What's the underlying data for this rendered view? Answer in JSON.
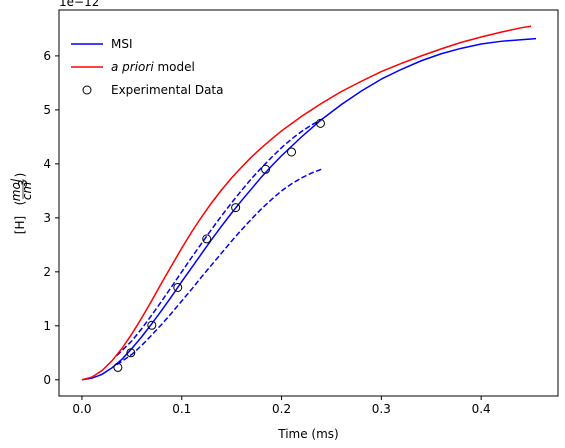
{
  "chart_data": {
    "type": "line",
    "xlabel": "Time (ms)",
    "ylabel": "[H]",
    "ylabel_unit_numerator": "mol",
    "ylabel_unit_denominator": "cm",
    "ylabel_unit_exponent": "3",
    "y_offset_text": "1e−12",
    "xlim": [
      -0.023,
      0.477
    ],
    "ylim": [
      -0.3,
      6.85
    ],
    "x_ticks": [
      0.0,
      0.1,
      0.2,
      0.3,
      0.4
    ],
    "x_tick_labels": [
      "0.0",
      "0.1",
      "0.2",
      "0.3",
      "0.4"
    ],
    "y_ticks": [
      0,
      1,
      2,
      3,
      4,
      5,
      6
    ],
    "y_tick_labels": [
      "0",
      "1",
      "2",
      "3",
      "4",
      "5",
      "6"
    ],
    "grid": false,
    "legend_position": "top-left",
    "legend": [
      {
        "label": "MSI",
        "color": "#0000ff",
        "style": "solid"
      },
      {
        "label_italic": "a priori",
        "label_rest": " model",
        "color": "#ff0000",
        "style": "solid"
      },
      {
        "label": "Experimental Data",
        "color": "#000000",
        "style": "circle"
      }
    ],
    "series": [
      {
        "name": "MSI",
        "color": "#0000ff",
        "style": "solid",
        "x": [
          0.0,
          0.01,
          0.02,
          0.03,
          0.04,
          0.05,
          0.06,
          0.07,
          0.08,
          0.09,
          0.1,
          0.11,
          0.12,
          0.13,
          0.14,
          0.15,
          0.16,
          0.17,
          0.18,
          0.19,
          0.2,
          0.22,
          0.24,
          0.26,
          0.28,
          0.3,
          0.32,
          0.34,
          0.36,
          0.38,
          0.4,
          0.42,
          0.44,
          0.455
        ],
        "y": [
          0.0,
          0.03,
          0.1,
          0.22,
          0.38,
          0.58,
          0.8,
          1.04,
          1.29,
          1.55,
          1.82,
          2.08,
          2.34,
          2.6,
          2.85,
          3.09,
          3.32,
          3.54,
          3.76,
          3.96,
          4.15,
          4.5,
          4.82,
          5.1,
          5.35,
          5.57,
          5.75,
          5.91,
          6.04,
          6.14,
          6.22,
          6.27,
          6.3,
          6.32
        ]
      },
      {
        "name": "",
        "color": "#0000ff",
        "style": "dashed",
        "x": [
          0.035,
          0.05,
          0.06,
          0.07,
          0.08,
          0.09,
          0.1,
          0.11,
          0.12,
          0.13,
          0.14,
          0.15,
          0.16,
          0.17,
          0.18,
          0.19,
          0.2,
          0.21,
          0.22,
          0.23,
          0.24
        ],
        "y": [
          0.45,
          0.72,
          0.95,
          1.2,
          1.46,
          1.73,
          2.0,
          2.27,
          2.53,
          2.79,
          3.04,
          3.28,
          3.51,
          3.73,
          3.93,
          4.12,
          4.3,
          4.46,
          4.6,
          4.72,
          4.82
        ]
      },
      {
        "name": "",
        "color": "#0000ff",
        "style": "dashed",
        "x": [
          0.035,
          0.05,
          0.06,
          0.07,
          0.08,
          0.09,
          0.1,
          0.11,
          0.12,
          0.13,
          0.14,
          0.15,
          0.16,
          0.17,
          0.18,
          0.19,
          0.2,
          0.21,
          0.22,
          0.23,
          0.24
        ],
        "y": [
          0.28,
          0.47,
          0.64,
          0.83,
          1.03,
          1.24,
          1.46,
          1.68,
          1.91,
          2.13,
          2.35,
          2.57,
          2.78,
          2.98,
          3.17,
          3.34,
          3.5,
          3.63,
          3.74,
          3.83,
          3.9
        ]
      },
      {
        "name": "a priori model",
        "color": "#ff0000",
        "style": "solid",
        "x": [
          0.0,
          0.01,
          0.02,
          0.03,
          0.04,
          0.05,
          0.06,
          0.07,
          0.08,
          0.09,
          0.1,
          0.11,
          0.12,
          0.13,
          0.14,
          0.15,
          0.16,
          0.17,
          0.18,
          0.19,
          0.2,
          0.22,
          0.24,
          0.26,
          0.28,
          0.3,
          0.32,
          0.34,
          0.36,
          0.38,
          0.4,
          0.42,
          0.44,
          0.45
        ],
        "y": [
          0.0,
          0.05,
          0.17,
          0.35,
          0.58,
          0.85,
          1.15,
          1.47,
          1.8,
          2.12,
          2.44,
          2.74,
          3.02,
          3.28,
          3.52,
          3.74,
          3.94,
          4.13,
          4.3,
          4.46,
          4.61,
          4.88,
          5.12,
          5.34,
          5.53,
          5.71,
          5.86,
          6.0,
          6.13,
          6.25,
          6.35,
          6.44,
          6.52,
          6.55
        ]
      }
    ],
    "experimental_data": {
      "name": "Experimental Data",
      "x": [
        0.036,
        0.049,
        0.07,
        0.096,
        0.125,
        0.154,
        0.184,
        0.21,
        0.239
      ],
      "y": [
        0.23,
        0.5,
        1.01,
        1.71,
        2.61,
        3.19,
        3.9,
        4.22,
        4.75
      ]
    }
  }
}
